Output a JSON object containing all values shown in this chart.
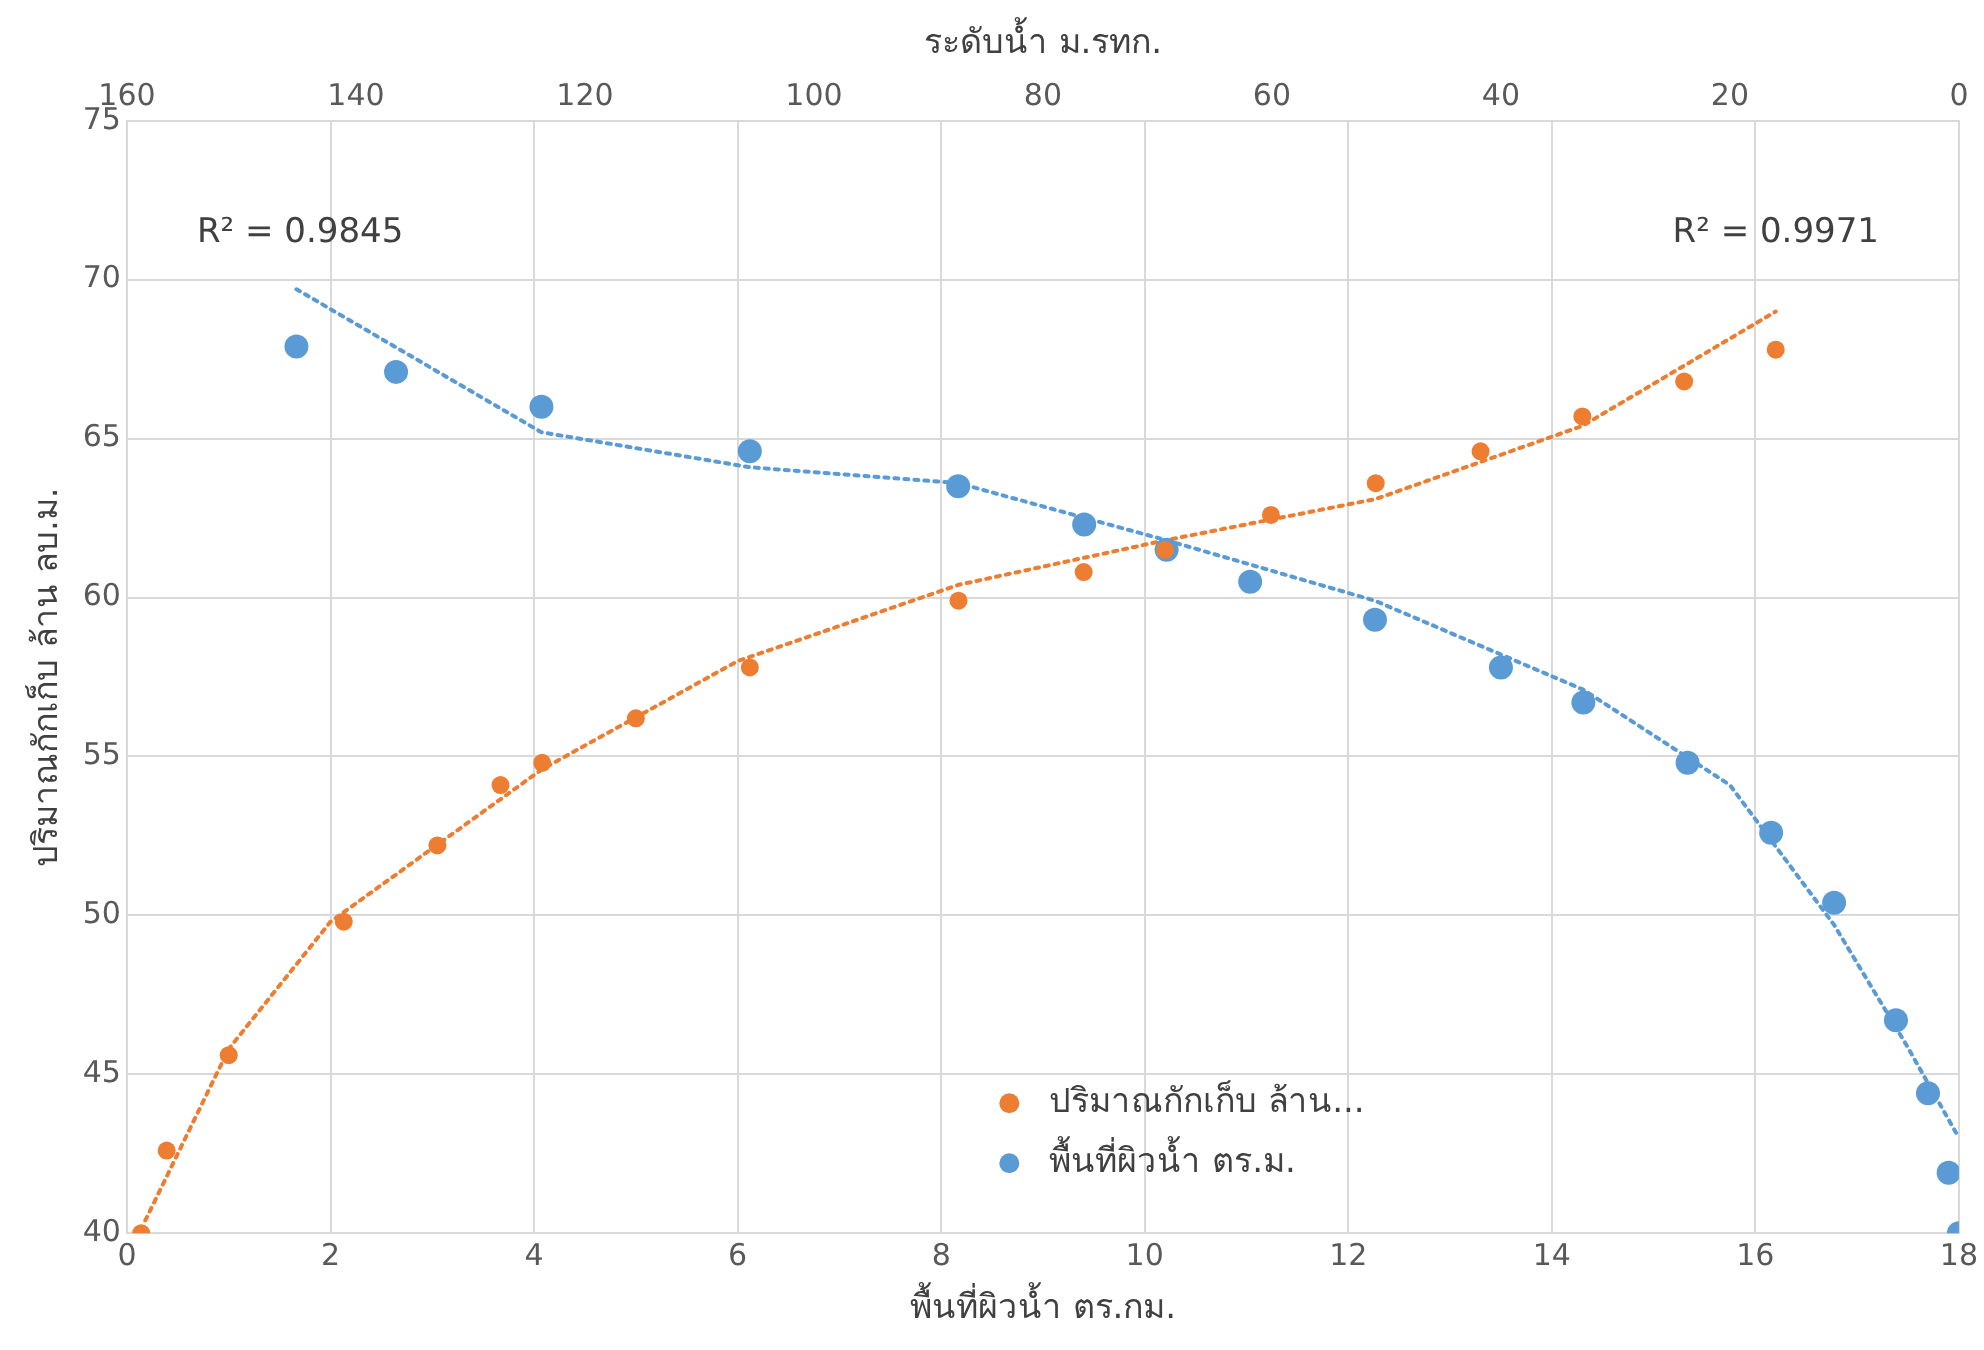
{
  "chart_data": {
    "type": "scatter",
    "xlabel": "พื้นที่ผิวน้ำ ตร.กม.",
    "x2label": "ระดับน้ำ ม.รทก.",
    "ylabel": "ปริมาณกักเก็บ ล้าน ลบ.ม.",
    "xlim": [
      0,
      18
    ],
    "xticks": [
      0,
      2,
      4,
      6,
      8,
      10,
      12,
      14,
      16,
      18
    ],
    "x2lim": [
      160,
      0
    ],
    "x2ticks": [
      160,
      140,
      120,
      100,
      80,
      60,
      40,
      20,
      0
    ],
    "ylim": [
      40,
      75
    ],
    "yticks": [
      40,
      45,
      50,
      55,
      60,
      65,
      70,
      75
    ],
    "grid": true,
    "legend": "bottom",
    "marker": "circle",
    "annotations": [
      "R² = 0.9845",
      "R² = 0.9971"
    ],
    "series": [
      {
        "name": "ปริมาณกักเก็บ ล้าน...",
        "color": "#ed7d31",
        "x": [
          0.14,
          0.39,
          1.0,
          2.13,
          3.05,
          3.67,
          4.08,
          5.0,
          6.12,
          8.17,
          9.4,
          10.2,
          11.24,
          12.27,
          13.3,
          14.3,
          15.3,
          16.2
        ],
        "values": [
          40,
          42.6,
          45.6,
          49.8,
          52.2,
          54.1,
          54.8,
          56.2,
          57.8,
          59.9,
          60.8,
          61.5,
          62.6,
          63.6,
          64.6,
          65.7,
          66.8,
          67.8
        ]
      },
      {
        "name": "พื้นที่ผิวน้ำ ตร.ม.",
        "color": "#5b9bd5",
        "axis": "x2",
        "x": [
          145.2,
          136.5,
          123.8,
          105.6,
          87.4,
          76.4,
          69.2,
          61.9,
          51,
          40,
          32.8,
          23.7,
          16.4,
          10.9,
          5.5,
          2.7,
          0.9,
          0
        ],
        "values": [
          67.9,
          67.1,
          66.0,
          64.6,
          63.5,
          62.3,
          61.5,
          60.5,
          59.3,
          57.8,
          56.7,
          54.8,
          52.6,
          50.4,
          46.7,
          44.4,
          41.9,
          40
        ]
      },
      {
        "type": "line",
        "color": "#ed7d31",
        "line_style": "dotted",
        "marker": "none",
        "x": [
          0.18,
          1.0,
          2.0,
          4.08,
          6.0,
          8.17,
          10.2,
          12.27,
          14.3,
          16.2
        ],
        "values": [
          40.4,
          45.8,
          49.8,
          54.6,
          58.0,
          60.4,
          61.8,
          63.1,
          65.4,
          69.0
        ]
      },
      {
        "type": "line",
        "color": "#5b9bd5",
        "line_style": "dotted",
        "marker": "none",
        "axis": "x2",
        "x": [
          145.2,
          123.8,
          105.6,
          87.4,
          69.2,
          51,
          32.8,
          20,
          10.9,
          4.55,
          0
        ],
        "values": [
          69.7,
          65.2,
          64.1,
          63.6,
          61.8,
          59.9,
          57.1,
          54.1,
          49.7,
          45.9,
          43
        ]
      }
    ]
  }
}
